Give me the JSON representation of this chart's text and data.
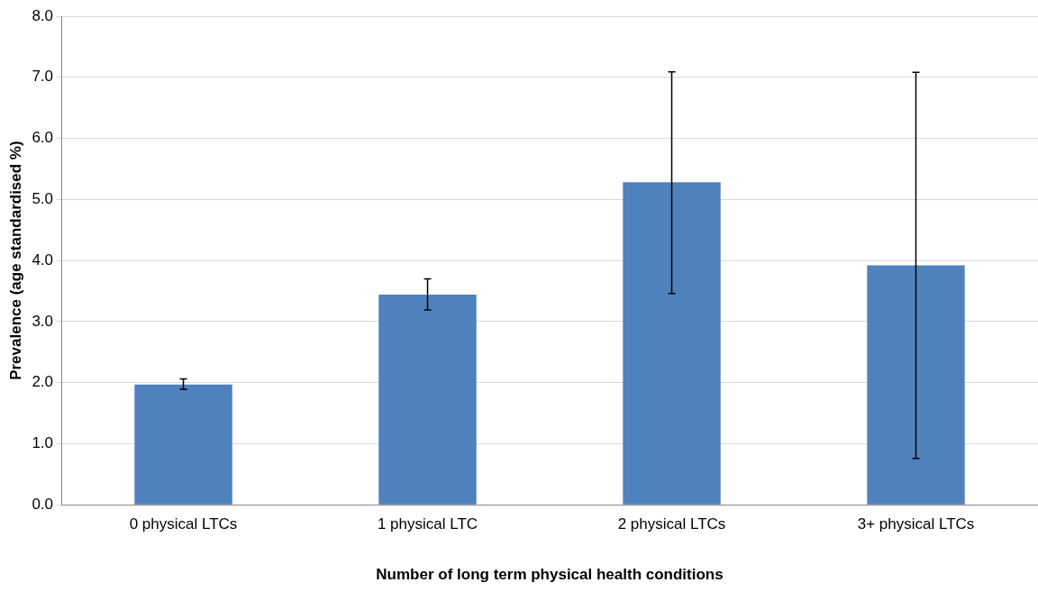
{
  "chart_data": {
    "type": "bar",
    "xlabel": "Number of long term physical health conditions",
    "ylabel": "Prevalence (age standardised %)",
    "categories": [
      "0 physical LTCs",
      "1 physical LTC",
      "2 physical LTCs",
      "3+ physical LTCs"
    ],
    "values": [
      1.97,
      3.44,
      5.28,
      3.92
    ],
    "errors": [
      [
        1.89,
        2.06
      ],
      [
        3.19,
        3.7
      ],
      [
        3.46,
        7.09
      ],
      [
        0.76,
        7.08
      ]
    ],
    "color": "#4f81bd",
    "ylim": [
      0,
      8
    ],
    "yticks": [
      {
        "value": 0,
        "label": "0.0"
      },
      {
        "value": 1,
        "label": "1.0"
      },
      {
        "value": 2,
        "label": "2.0"
      },
      {
        "value": 3,
        "label": "3.0"
      },
      {
        "value": 4,
        "label": "4.0"
      },
      {
        "value": 5,
        "label": "5.0"
      },
      {
        "value": 6,
        "label": "6.0"
      },
      {
        "value": 7,
        "label": "7.0"
      },
      {
        "value": 8,
        "label": "8.0"
      }
    ],
    "grid": "y",
    "legend": false
  }
}
